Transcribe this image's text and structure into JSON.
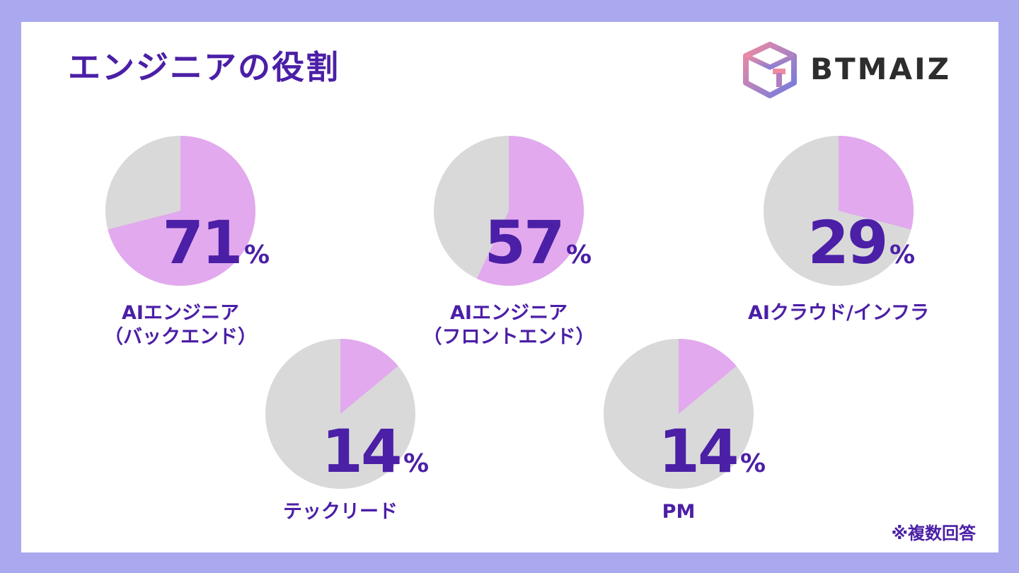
{
  "title": "エンジニアの役割",
  "logo": {
    "text": "BTMAIZ"
  },
  "note": "※複数回答",
  "colors": {
    "filled": "#e2a9ee",
    "rest": "#d9d9d9",
    "accent": "#4b1fa6",
    "frame": "#aaa8ee"
  },
  "chart_data": {
    "type": "pie",
    "unit": "%",
    "items": [
      {
        "label_lines": [
          "AIエンジニア",
          "（バックエンド）"
        ],
        "value": 71
      },
      {
        "label_lines": [
          "AIエンジニア",
          "（フロントエンド）"
        ],
        "value": 57
      },
      {
        "label_lines": [
          "AIクラウド/インフラ"
        ],
        "value": 29
      },
      {
        "label_lines": [
          "テックリード"
        ],
        "value": 14
      },
      {
        "label_lines": [
          "PM"
        ],
        "value": 14
      }
    ]
  }
}
